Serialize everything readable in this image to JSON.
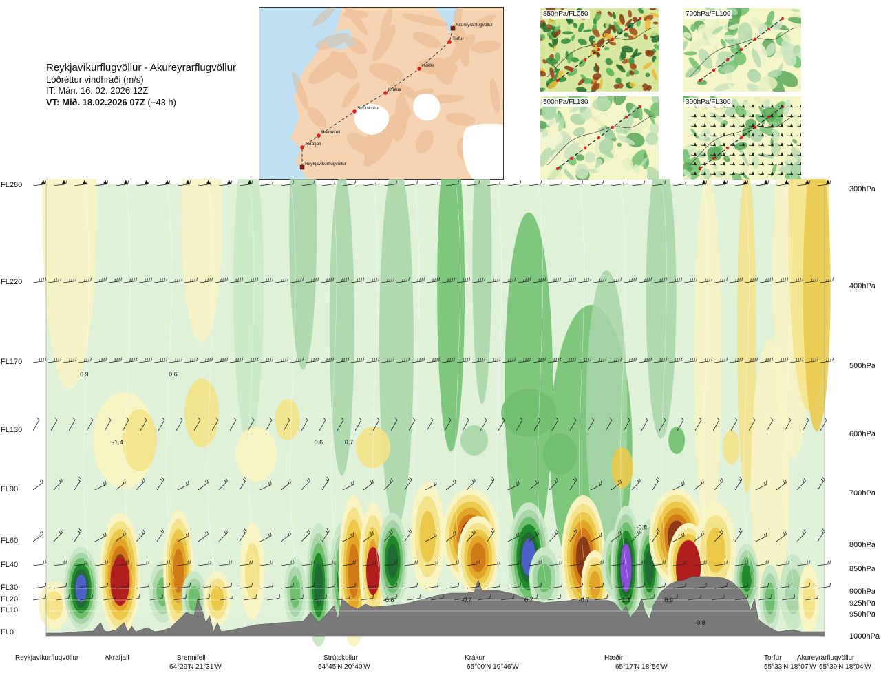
{
  "header": {
    "title": "Reykjavíkurflugvöllur - Akureyrarflugvöllur",
    "subtitle": "Lóðréttur vindhraði (m/s)",
    "it": "IT: Mán. 16. 02. 2026 12Z",
    "vt_bold": "VT: Mið. 18.02.2026 07Z",
    "vt_extra": "(+43 h)"
  },
  "route_map": {
    "waypoints": [
      {
        "name": "Akureyrarflugvöllur"
      },
      {
        "name": "Torfur"
      },
      {
        "name": "Hæðir"
      },
      {
        "name": "Krákur"
      },
      {
        "name": "Strútskollur"
      },
      {
        "name": "Brennifell"
      },
      {
        "name": "Akrafjall"
      },
      {
        "name": "Reykjavíkurflugvöllur"
      }
    ],
    "colors": {
      "sea": "#bfe0f3",
      "land": "#f5d3b3",
      "glacier": "#ffffff",
      "route": "#333333",
      "point": "#e02020"
    }
  },
  "insets": [
    {
      "label": "850hPa/FL050",
      "style": "rainbow"
    },
    {
      "label": "700hPa/FL100",
      "style": "greens"
    },
    {
      "label": "500hPa/FL180",
      "style": "greens"
    },
    {
      "label": "300hPa/FL300",
      "style": "greens"
    }
  ],
  "chart_data": {
    "type": "heatmap",
    "variable": "Lóðréttur vindhraði (m/s)",
    "flight_levels": [
      "FL280",
      "FL220",
      "FL170",
      "FL130",
      "FL90",
      "FL60",
      "FL40",
      "FL30",
      "FL20",
      "FL10",
      "FL0"
    ],
    "pressure_levels": [
      "300hPa",
      "400hPa",
      "500hPa",
      "600hPa",
      "700hPa",
      "800hPa",
      "850hPa",
      "900hPa",
      "925hPa",
      "950hPa",
      "1000hPa"
    ],
    "locations": [
      {
        "name": "Reykjavíkurflugvöllur",
        "coord": ""
      },
      {
        "name": "Akrafjall",
        "coord": ""
      },
      {
        "name": "Brennifell",
        "coord": "64°29'N 21°31'W"
      },
      {
        "name": "Strútskollur",
        "coord": "64°45'N 20°40'W"
      },
      {
        "name": "Krákur",
        "coord": "65°00'N 19°46'W"
      },
      {
        "name": "Hæðir",
        "coord": "65°17'N 18°56'W"
      },
      {
        "name": "Torfur",
        "coord": "65°33'N 18°07'W"
      },
      {
        "name": "Akureyrarflugvöllur",
        "coord": "65°39'N 18°04'W"
      }
    ],
    "value_labels": [
      {
        "text": "0.9",
        "dist": 0.049,
        "fl": 2
      },
      {
        "text": "-1.4",
        "dist": 0.092,
        "fl": 3
      },
      {
        "text": "0.6",
        "dist": 0.163,
        "fl": 2
      },
      {
        "text": "0.6",
        "dist": 0.35,
        "fl": 3
      },
      {
        "text": "0.7",
        "dist": 0.389,
        "fl": 3
      },
      {
        "text": "-0.6",
        "dist": 0.44,
        "fl": 7
      },
      {
        "text": "-0.7",
        "dist": 0.54,
        "fl": 7
      },
      {
        "text": "0.7",
        "dist": 0.62,
        "fl": 7
      },
      {
        "text": "-0.7",
        "dist": 0.691,
        "fl": 7
      },
      {
        "text": "1.3",
        "dist": 0.745,
        "fl": 7
      },
      {
        "text": "-0.8",
        "dist": 0.765,
        "fl": 4.5
      },
      {
        "text": "0.9",
        "dist": 0.8,
        "fl": 7
      },
      {
        "text": "-0.8",
        "dist": 0.84,
        "fl": 9
      }
    ],
    "colors": {
      "up_weak": "#dff1d8",
      "up_1": "#c9e8c6",
      "up_2": "#a8d5a8",
      "up_3": "#6fbf6f",
      "up_4": "#218a2b",
      "up_5": "#1f6b33",
      "up_6": "#4e60c9",
      "up_7": "#8a4fd8",
      "down_weak": "#f8f3c2",
      "down_1": "#f4e38a",
      "down_2": "#e9c84a",
      "down_3": "#e2a52a",
      "down_4": "#d07a18",
      "down_5": "#8b3a13",
      "down_6": "#b01e1e",
      "terrain": "#7a7a7a"
    },
    "xlim": [
      0,
      1
    ]
  }
}
